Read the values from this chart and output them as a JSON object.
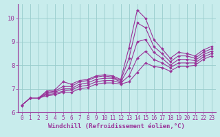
{
  "background_color": "#c8ecec",
  "line_color": "#993399",
  "grid_color": "#99cccc",
  "xlabel": "Windchill (Refroidissement éolien,°C)",
  "xlim": [
    -0.5,
    23.5
  ],
  "ylim": [
    6.0,
    10.6
  ],
  "yticks": [
    6,
    7,
    8,
    9,
    10
  ],
  "xticks": [
    0,
    1,
    2,
    3,
    4,
    5,
    6,
    7,
    8,
    9,
    10,
    11,
    12,
    13,
    14,
    15,
    16,
    17,
    18,
    19,
    20,
    21,
    22,
    23
  ],
  "series": [
    [
      6.3,
      6.6,
      6.6,
      6.9,
      6.95,
      7.3,
      7.2,
      7.35,
      7.4,
      7.55,
      7.6,
      7.55,
      7.4,
      8.75,
      10.35,
      10.0,
      9.1,
      8.7,
      8.3,
      8.55,
      8.5,
      8.4,
      8.65,
      8.8
    ],
    [
      6.3,
      6.6,
      6.6,
      6.85,
      6.9,
      7.1,
      7.1,
      7.3,
      7.35,
      7.5,
      7.55,
      7.5,
      7.35,
      8.3,
      9.8,
      9.6,
      8.8,
      8.5,
      8.15,
      8.4,
      8.4,
      8.3,
      8.55,
      8.7
    ],
    [
      6.3,
      6.6,
      6.6,
      6.8,
      6.85,
      7.0,
      7.0,
      7.2,
      7.25,
      7.4,
      7.45,
      7.45,
      7.3,
      7.9,
      9.0,
      9.1,
      8.55,
      8.3,
      8.0,
      8.25,
      8.25,
      8.2,
      8.45,
      8.6
    ],
    [
      6.3,
      6.6,
      6.6,
      6.75,
      6.8,
      6.9,
      6.95,
      7.1,
      7.15,
      7.3,
      7.35,
      7.35,
      7.25,
      7.55,
      8.3,
      8.6,
      8.25,
      8.1,
      7.9,
      8.1,
      8.1,
      8.1,
      8.35,
      8.5
    ],
    [
      6.3,
      6.6,
      6.6,
      6.7,
      6.75,
      6.85,
      6.85,
      7.0,
      7.05,
      7.2,
      7.25,
      7.25,
      7.2,
      7.3,
      7.7,
      8.1,
      7.95,
      7.9,
      7.75,
      7.95,
      7.95,
      8.0,
      8.25,
      8.4
    ]
  ],
  "marker": "D",
  "marker_size": 2,
  "line_width": 0.8,
  "tick_fontsize": 5.5,
  "label_fontsize": 6.5,
  "font_family": "monospace"
}
